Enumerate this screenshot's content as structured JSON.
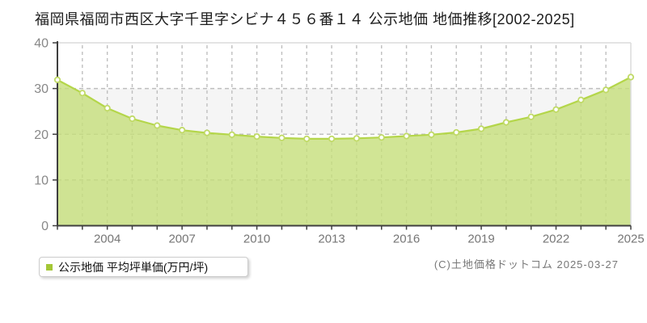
{
  "title": "福岡県福岡市西区大字千里字シビナ４５６番１４ 公示地価 地価推移[2002-2025]",
  "legend": {
    "marker_color": "#a4c736",
    "label": "公示地価 平均坪単価(万円/坪)"
  },
  "footer": {
    "credit": "(C)土地価格ドットコム 2025-03-27"
  },
  "chart_data": {
    "type": "area",
    "title": "福岡県福岡市西区大字千里字シビナ４５６番１４ 公示地価 地価推移[2002-2025]",
    "series_name": "公示地価 平均坪単価(万円/坪)",
    "x": [
      2002,
      2003,
      2004,
      2005,
      2006,
      2007,
      2008,
      2009,
      2010,
      2011,
      2012,
      2013,
      2014,
      2015,
      2016,
      2017,
      2018,
      2019,
      2020,
      2021,
      2022,
      2023,
      2024,
      2025
    ],
    "values": [
      31.9,
      29.0,
      25.7,
      23.4,
      21.9,
      20.9,
      20.3,
      19.9,
      19.5,
      19.2,
      19.0,
      19.0,
      19.1,
      19.3,
      19.6,
      19.9,
      20.4,
      21.2,
      22.6,
      23.8,
      25.4,
      27.5,
      29.7,
      32.5
    ],
    "ylabel": "平均坪単価(万円/坪)",
    "xlabel": "",
    "ylim": [
      0,
      40
    ],
    "y_ticks": [
      0,
      10,
      20,
      30,
      40
    ],
    "x_tick_years": [
      2004,
      2007,
      2010,
      2013,
      2016,
      2019,
      2022,
      2025
    ],
    "grid": "dashed",
    "legend_position": "bottom-left",
    "colors": {
      "area": "#c6de7b",
      "line": "#b4d64a",
      "marker_fill": "#ffffff",
      "marker_stroke": "#c0da66",
      "band": "#f5f5f5",
      "grid": "#bfbfbf",
      "axis": "#3f3f3f",
      "frame": "#dcdcdc",
      "y_label": "#888888",
      "x_label": "#767676"
    }
  }
}
